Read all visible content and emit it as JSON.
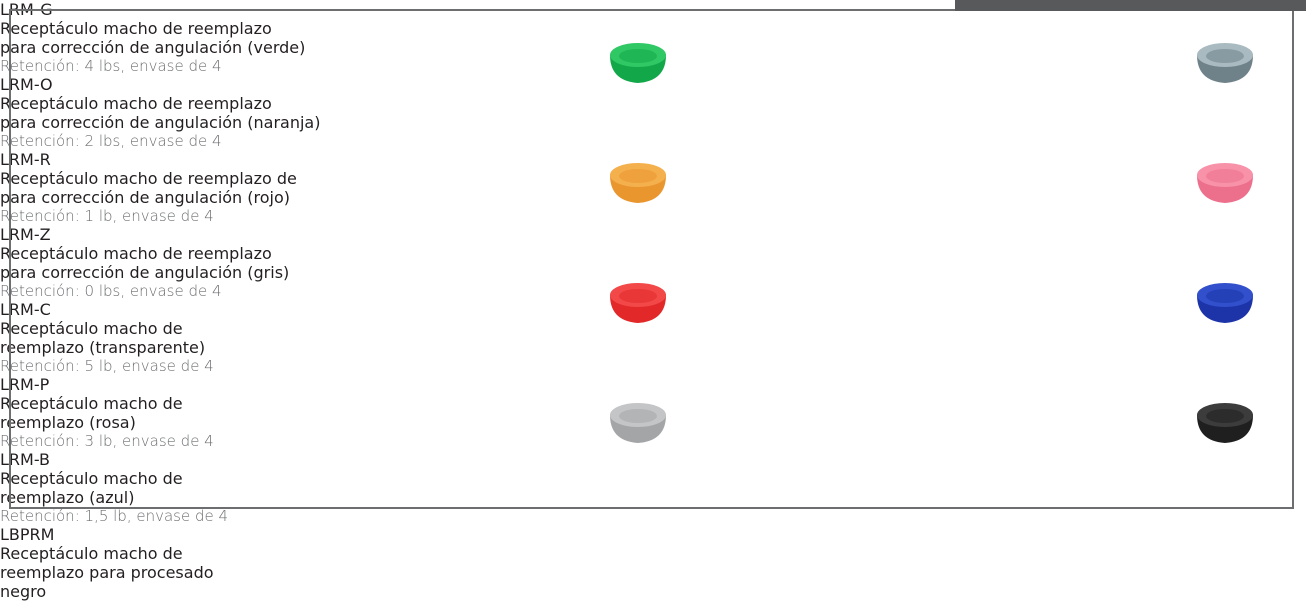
{
  "items": [
    {
      "code": "LRM-G",
      "description": [
        "Receptáculo macho de reemplazo",
        "para corrección de angulación (verde)"
      ],
      "retention": "Retención: 4 lbs, envase de 4"
    },
    {
      "code": "LRM-O",
      "description": [
        "Receptáculo macho de reemplazo",
        "para corrección de angulación (naranja)"
      ],
      "retention": "Retención: 2 lbs, envase de 4"
    },
    {
      "code": "LRM-R",
      "description": [
        "Receptáculo macho de reemplazo de",
        "para corrección de angulación (rojo)"
      ],
      "retention": "Retención: 1 lb, envase de 4"
    },
    {
      "code": "LRM-Z",
      "description": [
        "Receptáculo macho de reemplazo",
        "para corrección de angulación (gris)"
      ],
      "retention": "Retención: 0 lbs, envase de 4"
    },
    {
      "code": "LRM-C",
      "description": [
        "Receptáculo macho de",
        "reemplazo (transparente)"
      ],
      "retention": "Retención: 5 lb, envase de 4"
    },
    {
      "code": "LRM-P",
      "description": [
        "Receptáculo macho de",
        "reemplazo (rosa)"
      ],
      "retention": "Retención: 3 lb, envase de 4"
    },
    {
      "code": "LRM-B",
      "description": [
        "Receptáculo macho de",
        "reemplazo (azul)"
      ],
      "retention": "Retención: 1,5 lb, envase de 4"
    },
    {
      "code": "LBPRM",
      "description": [
        "Receptáculo macho de",
        "reemplazo para procesado",
        "negro"
      ]
    }
  ]
}
